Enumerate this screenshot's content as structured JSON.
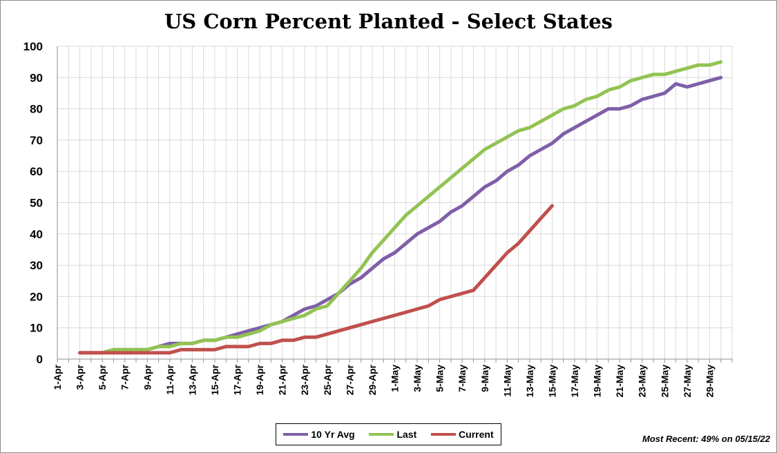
{
  "chart_data": {
    "type": "line",
    "title": "US Corn Percent Planted - Select States",
    "ylim": [
      0,
      100
    ],
    "yticks": [
      0,
      10,
      20,
      30,
      40,
      50,
      60,
      70,
      80,
      90,
      100
    ],
    "grid": true,
    "legend_position": "bottom",
    "xticks": [
      "1-Apr",
      "3-Apr",
      "5-Apr",
      "7-Apr",
      "9-Apr",
      "11-Apr",
      "13-Apr",
      "15-Apr",
      "17-Apr",
      "19-Apr",
      "21-Apr",
      "23-Apr",
      "25-Apr",
      "27-Apr",
      "29-Apr",
      "1-May",
      "3-May",
      "5-May",
      "7-May",
      "9-May",
      "11-May",
      "13-May",
      "15-May",
      "17-May",
      "19-May",
      "21-May",
      "23-May",
      "25-May",
      "27-May",
      "29-May"
    ],
    "series": [
      {
        "name": "10 Yr Avg",
        "color": "#7f5fa8",
        "x": [
          "3-Apr",
          "4-Apr",
          "5-Apr",
          "6-Apr",
          "7-Apr",
          "8-Apr",
          "9-Apr",
          "10-Apr",
          "11-Apr",
          "12-Apr",
          "13-Apr",
          "14-Apr",
          "15-Apr",
          "16-Apr",
          "17-Apr",
          "18-Apr",
          "19-Apr",
          "20-Apr",
          "21-Apr",
          "22-Apr",
          "23-Apr",
          "24-Apr",
          "25-Apr",
          "26-Apr",
          "27-Apr",
          "28-Apr",
          "29-Apr",
          "30-Apr",
          "1-May",
          "2-May",
          "3-May",
          "4-May",
          "5-May",
          "6-May",
          "7-May",
          "8-May",
          "9-May",
          "10-May",
          "11-May",
          "12-May",
          "13-May",
          "14-May",
          "15-May",
          "16-May",
          "17-May",
          "18-May",
          "19-May",
          "20-May",
          "21-May",
          "22-May",
          "23-May",
          "24-May",
          "25-May",
          "26-May",
          "27-May",
          "28-May",
          "29-May",
          "30-May"
        ],
        "y": [
          2,
          2,
          2,
          3,
          3,
          3,
          3,
          4,
          5,
          5,
          5,
          6,
          6,
          7,
          8,
          9,
          10,
          11,
          12,
          14,
          16,
          17,
          19,
          21,
          24,
          26,
          29,
          32,
          34,
          37,
          40,
          42,
          44,
          47,
          49,
          52,
          55,
          57,
          60,
          62,
          65,
          67,
          69,
          72,
          74,
          76,
          78,
          80,
          80,
          81,
          83,
          84,
          85,
          88,
          87,
          88,
          89,
          90
        ]
      },
      {
        "name": "Last",
        "color": "#92c353",
        "x": [
          "3-Apr",
          "4-Apr",
          "5-Apr",
          "6-Apr",
          "7-Apr",
          "8-Apr",
          "9-Apr",
          "10-Apr",
          "11-Apr",
          "12-Apr",
          "13-Apr",
          "14-Apr",
          "15-Apr",
          "16-Apr",
          "17-Apr",
          "18-Apr",
          "19-Apr",
          "20-Apr",
          "21-Apr",
          "22-Apr",
          "23-Apr",
          "24-Apr",
          "25-Apr",
          "26-Apr",
          "27-Apr",
          "28-Apr",
          "29-Apr",
          "30-Apr",
          "1-May",
          "2-May",
          "3-May",
          "4-May",
          "5-May",
          "6-May",
          "7-May",
          "8-May",
          "9-May",
          "10-May",
          "11-May",
          "12-May",
          "13-May",
          "14-May",
          "15-May",
          "16-May",
          "17-May",
          "18-May",
          "19-May",
          "20-May",
          "21-May",
          "22-May",
          "23-May",
          "24-May",
          "25-May",
          "26-May",
          "27-May",
          "28-May",
          "29-May",
          "30-May"
        ],
        "y": [
          2,
          2,
          2,
          3,
          3,
          3,
          3,
          4,
          4,
          5,
          5,
          6,
          6,
          7,
          7,
          8,
          9,
          11,
          12,
          13,
          14,
          16,
          17,
          21,
          25,
          29,
          34,
          38,
          42,
          46,
          49,
          52,
          55,
          58,
          61,
          64,
          67,
          69,
          71,
          73,
          74,
          76,
          78,
          80,
          81,
          83,
          84,
          86,
          87,
          89,
          90,
          91,
          91,
          92,
          93,
          94,
          94,
          95
        ]
      },
      {
        "name": "Current",
        "color": "#c0504d",
        "x": [
          "3-Apr",
          "4-Apr",
          "5-Apr",
          "6-Apr",
          "7-Apr",
          "8-Apr",
          "9-Apr",
          "10-Apr",
          "11-Apr",
          "12-Apr",
          "13-Apr",
          "14-Apr",
          "15-Apr",
          "16-Apr",
          "17-Apr",
          "18-Apr",
          "19-Apr",
          "20-Apr",
          "21-Apr",
          "22-Apr",
          "23-Apr",
          "24-Apr",
          "25-Apr",
          "26-Apr",
          "27-Apr",
          "28-Apr",
          "29-Apr",
          "30-Apr",
          "1-May",
          "2-May",
          "3-May",
          "4-May",
          "5-May",
          "6-May",
          "7-May",
          "8-May",
          "9-May",
          "10-May",
          "11-May",
          "12-May",
          "13-May",
          "14-May",
          "15-May"
        ],
        "y": [
          2,
          2,
          2,
          2,
          2,
          2,
          2,
          2,
          2,
          3,
          3,
          3,
          3,
          4,
          4,
          4,
          5,
          5,
          6,
          6,
          7,
          7,
          8,
          9,
          10,
          11,
          12,
          13,
          14,
          15,
          16,
          17,
          19,
          20,
          21,
          22,
          26,
          30,
          34,
          37,
          41,
          45,
          49
        ]
      }
    ],
    "annotation": "Most Recent: 49% on 05/15/22"
  }
}
